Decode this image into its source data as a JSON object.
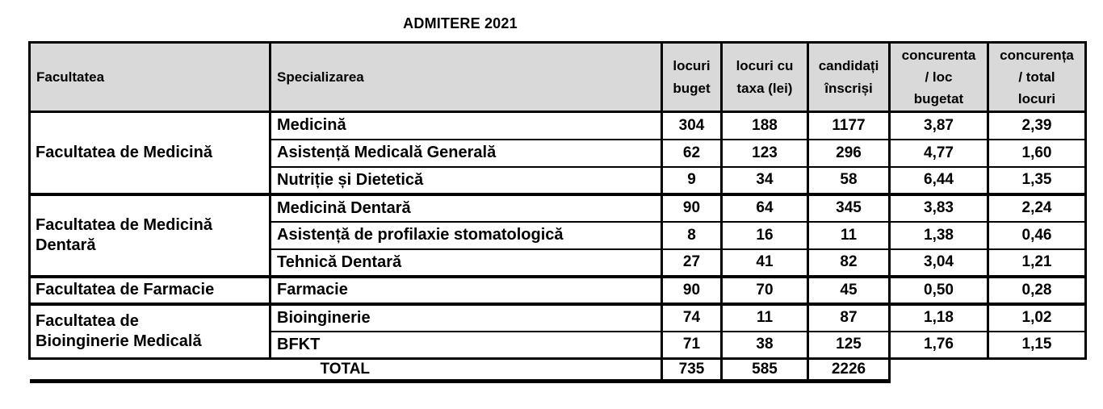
{
  "title": "ADMITERE 2021",
  "table": {
    "columns": [
      "Facultatea",
      "Specializarea",
      "locuri\nbuget",
      "locuri cu\ntaxa (lei)",
      "candidați\nînscriși",
      "concurenta\n/ loc\nbugetat",
      "concurența\n/ total\nlocuri"
    ],
    "groups": [
      {
        "faculty": "Facultatea de Medicină",
        "rows": [
          {
            "spec": "Medicină",
            "values": [
              "304",
              "188",
              "1177",
              "3,87",
              "2,39"
            ]
          },
          {
            "spec": "Asistență Medicală Generală",
            "values": [
              "62",
              "123",
              "296",
              "4,77",
              "1,60"
            ]
          },
          {
            "spec": "Nutriție și Dietetică",
            "values": [
              "9",
              "34",
              "58",
              "6,44",
              "1,35"
            ]
          }
        ]
      },
      {
        "faculty": "Facultatea de Medicină\nDentară",
        "rows": [
          {
            "spec": "Medicină Dentară",
            "values": [
              "90",
              "64",
              "345",
              "3,83",
              "2,24"
            ]
          },
          {
            "spec": "Asistență de profilaxie stomatologică",
            "values": [
              "8",
              "16",
              "11",
              "1,38",
              "0,46"
            ]
          },
          {
            "spec": "Tehnică Dentară",
            "values": [
              "27",
              "41",
              "82",
              "3,04",
              "1,21"
            ]
          }
        ]
      },
      {
        "faculty": "Facultatea de Farmacie",
        "rows": [
          {
            "spec": "Farmacie",
            "values": [
              "90",
              "70",
              "45",
              "0,50",
              "0,28"
            ]
          }
        ]
      },
      {
        "faculty": "Facultatea de\nBioinginerie Medicală",
        "rows": [
          {
            "spec": "Bioinginerie",
            "values": [
              "74",
              "11",
              "87",
              "1,18",
              "1,02"
            ]
          },
          {
            "spec": "BFKT",
            "values": [
              "71",
              "38",
              "125",
              "1,76",
              "1,15"
            ]
          }
        ]
      }
    ],
    "total": {
      "label": "TOTAL",
      "values": [
        "735",
        "585",
        "2226"
      ]
    }
  },
  "colors": {
    "header_bg": "#d9d9d9",
    "border": "#000000",
    "text": "#000000",
    "page_bg": "#ffffff"
  }
}
